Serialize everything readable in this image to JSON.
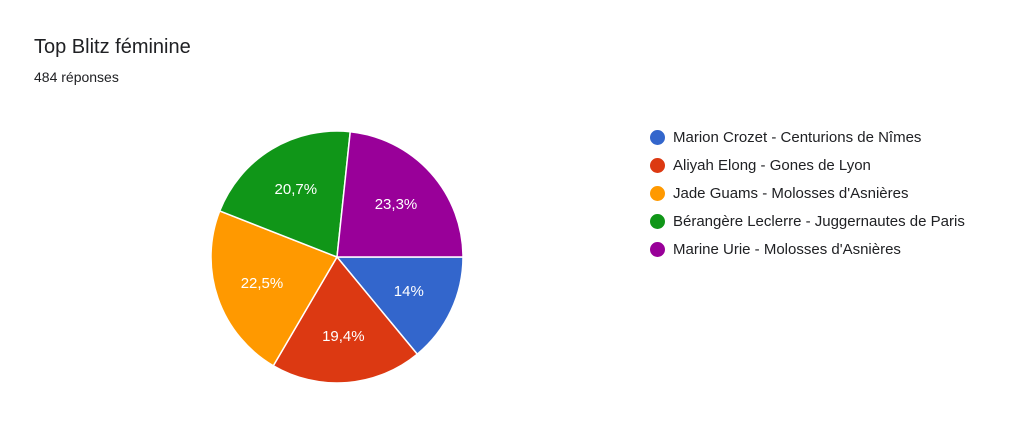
{
  "chart_data": {
    "type": "pie",
    "title": "Top Blitz féminine",
    "subtitle": "484 réponses",
    "slices": [
      {
        "name": "Marion Crozet - Centurions de Nîmes",
        "value": 14,
        "label": "14%",
        "color": "#3366cc"
      },
      {
        "name": "Aliyah Elong - Gones de Lyon",
        "value": 19.4,
        "label": "19,4%",
        "color": "#dc3912"
      },
      {
        "name": "Jade Guams - Molosses d'Asnières",
        "value": 22.5,
        "label": "22,5%",
        "color": "#ff9900"
      },
      {
        "name": "Bérangère Leclerre - Juggernautes de Paris",
        "value": 20.7,
        "label": "20,7%",
        "color": "#109618"
      },
      {
        "name": "Marine Urie - Molosses d'Asnières",
        "value": 23.3,
        "label": "23,3%",
        "color": "#990099"
      }
    ],
    "legend_position": "right"
  }
}
